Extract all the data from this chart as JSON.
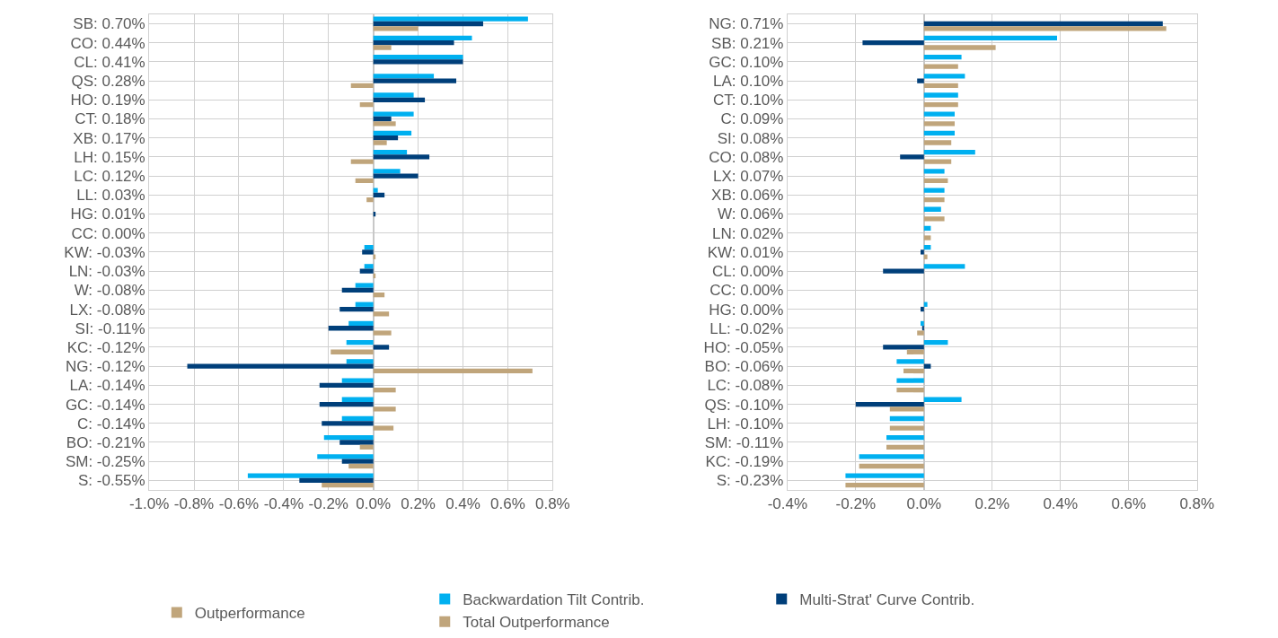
{
  "chart_data": [
    {
      "type": "bar",
      "orientation": "horizontal",
      "categories": [
        "SB: 0.70%",
        "CO: 0.44%",
        "CL: 0.41%",
        "QS: 0.28%",
        "HO: 0.19%",
        "CT: 0.18%",
        "XB: 0.17%",
        "LH: 0.15%",
        "LC: 0.12%",
        "LL: 0.03%",
        "HG: 0.01%",
        "CC: 0.00%",
        "KW: -0.03%",
        "LN: -0.03%",
        "W: -0.08%",
        "LX: -0.08%",
        "SI: -0.11%",
        "KC: -0.12%",
        "NG: -0.12%",
        "LA: -0.14%",
        "GC: -0.14%",
        "C: -0.14%",
        "BO: -0.21%",
        "SM: -0.25%",
        "S: -0.55%"
      ],
      "series": [
        {
          "color": "#00b0f0",
          "values": [
            0.69,
            0.44,
            0.4,
            0.27,
            0.18,
            0.18,
            0.17,
            0.15,
            0.12,
            0.02,
            0,
            0,
            -0.04,
            -0.04,
            -0.08,
            -0.08,
            -0.11,
            -0.12,
            -0.12,
            -0.14,
            -0.14,
            -0.14,
            -0.22,
            -0.25,
            -0.56
          ]
        },
        {
          "color": "#003f7a",
          "values": [
            0.49,
            0.36,
            0.4,
            0.37,
            0.23,
            0.08,
            0.11,
            0.25,
            0.2,
            0.05,
            0.01,
            0,
            -0.05,
            -0.06,
            -0.14,
            -0.15,
            -0.2,
            0.07,
            -0.83,
            -0.24,
            -0.24,
            -0.23,
            -0.15,
            -0.14,
            -0.33
          ]
        },
        {
          "name": "Outperformance",
          "color": "#c0a57b",
          "values": [
            0.2,
            0.08,
            0,
            -0.1,
            -0.06,
            0.1,
            0.06,
            -0.1,
            -0.08,
            -0.03,
            0,
            0,
            0.01,
            0.01,
            0.05,
            0.07,
            0.08,
            -0.19,
            0.71,
            0.1,
            0.1,
            0.09,
            -0.06,
            -0.11,
            -0.23
          ]
        }
      ],
      "xlim": [
        -1.0,
        0.8
      ],
      "xticks": [
        {
          "value": -1.0,
          "label": "-1.0%"
        },
        {
          "value": -0.8,
          "label": "-0.8%"
        },
        {
          "value": -0.6,
          "label": "-0.6%"
        },
        {
          "value": -0.4,
          "label": "-0.4%"
        },
        {
          "value": -0.2,
          "label": "-0.2%"
        },
        {
          "value": 0,
          "label": "0.0%"
        },
        {
          "value": 0.2,
          "label": "0.2%"
        },
        {
          "value": 0.4,
          "label": "0.4%"
        },
        {
          "value": 0.6,
          "label": "0.6%"
        },
        {
          "value": 0.8,
          "label": "0.8%"
        }
      ],
      "grid": true,
      "legend": "bottom"
    },
    {
      "type": "bar",
      "orientation": "horizontal",
      "categories": [
        "NG: 0.71%",
        "SB: 0.21%",
        "GC: 0.10%",
        "LA: 0.10%",
        "CT: 0.10%",
        "C: 0.09%",
        "SI: 0.08%",
        "CO: 0.08%",
        "LX: 0.07%",
        "XB: 0.06%",
        "W: 0.06%",
        "LN: 0.02%",
        "KW: 0.01%",
        "CL: 0.00%",
        "CC: 0.00%",
        "HG: 0.00%",
        "LL: -0.02%",
        "HO: -0.05%",
        "BO: -0.06%",
        "LC: -0.08%",
        "QS: -0.10%",
        "LH: -0.10%",
        "SM: -0.11%",
        "KC: -0.19%",
        "S: -0.23%"
      ],
      "series": [
        {
          "name": "Backwardation Tilt Contrib.",
          "color": "#00b0f0",
          "values": [
            0,
            0.39,
            0.11,
            0.12,
            0.1,
            0.09,
            0.09,
            0.15,
            0.06,
            0.06,
            0.05,
            0.02,
            0.02,
            0.12,
            0,
            0.01,
            -0.01,
            0.07,
            -0.08,
            -0.08,
            0.11,
            -0.1,
            -0.11,
            -0.19,
            -0.23
          ]
        },
        {
          "name": "Multi-Strat' Curve Contrib.",
          "color": "#003f7a",
          "values": [
            0.7,
            -0.18,
            0,
            -0.02,
            0,
            0,
            0,
            -0.07,
            0,
            0,
            0,
            0,
            -0.01,
            -0.12,
            0,
            -0.01,
            -0.005,
            -0.12,
            0.02,
            0,
            -0.2,
            0,
            0,
            0,
            0
          ]
        },
        {
          "name": "Total Outperformance",
          "color": "#c0a57b",
          "values": [
            0.71,
            0.21,
            0.1,
            0.1,
            0.1,
            0.09,
            0.08,
            0.08,
            0.07,
            0.06,
            0.06,
            0.02,
            0.01,
            0,
            0,
            0,
            -0.02,
            -0.05,
            -0.06,
            -0.08,
            -0.1,
            -0.1,
            -0.11,
            -0.19,
            -0.23
          ]
        }
      ],
      "xlim": [
        -0.4,
        0.8
      ],
      "xticks": [
        {
          "value": -0.4,
          "label": "-0.4%"
        },
        {
          "value": -0.2,
          "label": "-0.2%"
        },
        {
          "value": 0,
          "label": "0.0%"
        },
        {
          "value": 0.2,
          "label": "0.2%"
        },
        {
          "value": 0.4,
          "label": "0.4%"
        },
        {
          "value": 0.6,
          "label": "0.6%"
        },
        {
          "value": 0.8,
          "label": "0.8%"
        }
      ],
      "grid": true,
      "legend": "bottom"
    }
  ]
}
